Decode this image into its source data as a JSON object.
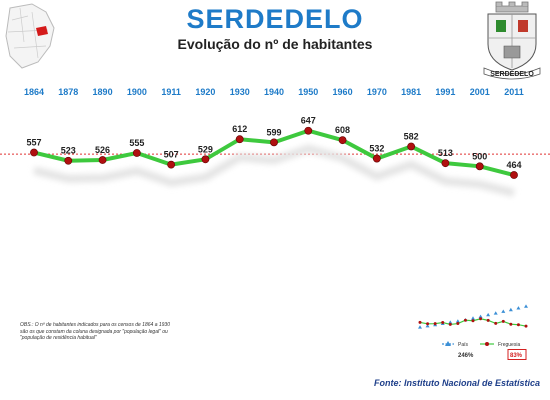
{
  "title": "SERDEDELO",
  "subtitle": "Evolução do nº de habitantes",
  "crest_label": "SERDEDELO",
  "note": "OBS.: O nº de habitantes indicados para os censos de 1864 a 1930 são os que constam da coluna designada por \"população legal\" ou \"população de residência habitual\"",
  "source": "Fonte: Instituto Nacional de Estatística",
  "colors": {
    "title": "#1e7bc8",
    "line": "#3ec93e",
    "marker": "#b01010",
    "reference": "#e03030",
    "mini_pais": "#3b8fd6",
    "mini_freguesia": "#b01010",
    "highlight": "#d42020"
  },
  "chart_data": {
    "type": "line",
    "x": [
      "1864",
      "1878",
      "1890",
      "1900",
      "1911",
      "1920",
      "1930",
      "1940",
      "1950",
      "1960",
      "1970",
      "1981",
      "1991",
      "2001",
      "2011"
    ],
    "series": [
      {
        "values": [
          557,
          523,
          526,
          555,
          507,
          529,
          612,
          599,
          647,
          608,
          532,
          582,
          513,
          500,
          464
        ]
      }
    ],
    "reference_line": "dotted horizontal average line",
    "grid": false,
    "title": "Evolução do nº de habitantes",
    "xlabel": "",
    "ylabel": ""
  },
  "mini_chart": {
    "legend": [
      {
        "name": "País",
        "pct": "246%"
      },
      {
        "name": "Freguesia",
        "pct": "83%"
      }
    ]
  }
}
